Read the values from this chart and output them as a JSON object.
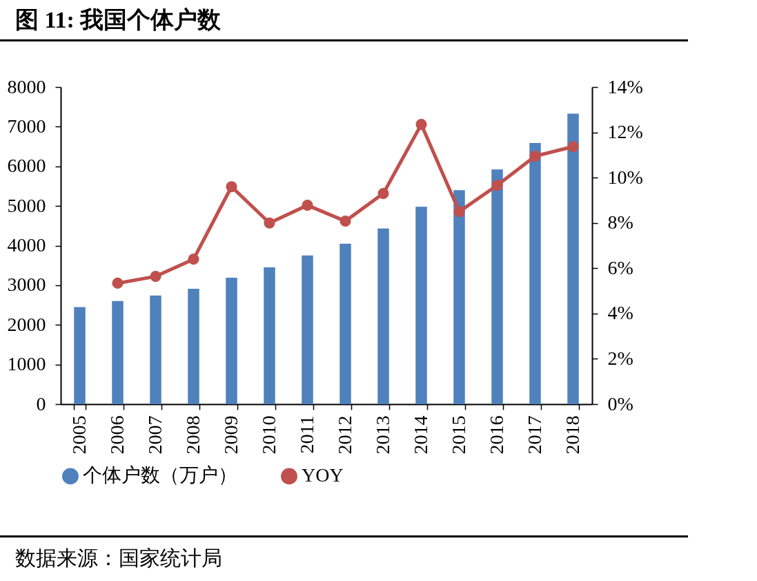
{
  "chart_data": {
    "type": "bar",
    "title": "图 11: 我国个体户数",
    "categories": [
      "2005",
      "2006",
      "2007",
      "2008",
      "2009",
      "2010",
      "2011",
      "2012",
      "2013",
      "2014",
      "2015",
      "2016",
      "2017",
      "2018"
    ],
    "series": [
      {
        "name": "个体户数（万户）",
        "color": "#4f81bd",
        "values": [
          2450,
          2600,
          2740,
          2910,
          3190,
          3450,
          3750,
          4050,
          4430,
          4980,
          5400,
          5920,
          6590,
          7330
        ]
      },
      {
        "name": "YOY",
        "type": "line",
        "axis": "y2",
        "color": "#c0504d",
        "values": [
          null,
          5.34,
          5.64,
          6.4,
          9.6,
          8.0,
          8.78,
          8.08,
          9.3,
          12.35,
          8.5,
          9.66,
          10.95,
          11.37
        ]
      }
    ],
    "ylim": [
      0,
      8000
    ],
    "yticks": [
      0,
      1000,
      2000,
      3000,
      4000,
      5000,
      6000,
      7000,
      8000
    ],
    "y2lim": [
      0,
      14
    ],
    "y2ticks": [
      {
        "value": 0,
        "label": "0%"
      },
      {
        "value": 2,
        "label": "2%"
      },
      {
        "value": 4,
        "label": "4%"
      },
      {
        "value": 6,
        "label": "6%"
      },
      {
        "value": 8,
        "label": "8%"
      },
      {
        "value": 10,
        "label": "10%"
      },
      {
        "value": 12,
        "label": "12%"
      },
      {
        "value": 14,
        "label": "14%"
      }
    ],
    "legend": "bottom",
    "marker": "circle",
    "line_style": "solid",
    "grid": false,
    "annotations": [
      "数据来源：国家统计局"
    ]
  }
}
